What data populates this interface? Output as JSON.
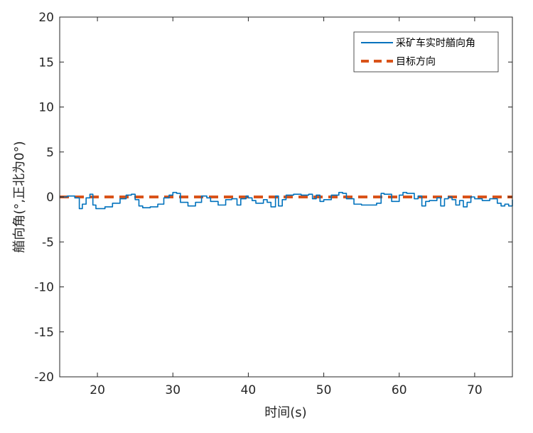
{
  "chart_data": {
    "type": "line",
    "title": "",
    "xlabel": "时间(s)",
    "ylabel": "艏向角(°,正北为0°)",
    "xlim": [
      15,
      75
    ],
    "ylim": [
      -20,
      20
    ],
    "xticks": [
      20,
      30,
      40,
      50,
      60,
      70
    ],
    "yticks": [
      -20,
      -15,
      -10,
      -5,
      0,
      5,
      10,
      15,
      20
    ],
    "grid": false,
    "legend_position": "top-right",
    "colors": {
      "actual": "#0072BD",
      "target": "#D95319",
      "axis": "#262626"
    },
    "series": [
      {
        "name": "采矿车实时艏向角",
        "style": "solid",
        "x": [
          15,
          16,
          17,
          17.6,
          18,
          18.5,
          19,
          19.4,
          19.8,
          20.3,
          21,
          22,
          23,
          23.8,
          24.5,
          25,
          25.5,
          26,
          27,
          28,
          28.8,
          29.5,
          30,
          30.5,
          31,
          32,
          33,
          33.8,
          34.5,
          35,
          36,
          37,
          37.8,
          38.5,
          39,
          39.7,
          40,
          40.5,
          41,
          42,
          42.5,
          43,
          43.6,
          44,
          44.5,
          45,
          46,
          47,
          48,
          48.5,
          49,
          49.5,
          50,
          51,
          52,
          52.5,
          53,
          54,
          55,
          56,
          57,
          57.6,
          58,
          59,
          60,
          60.5,
          61,
          62,
          62.5,
          63,
          63.5,
          64,
          65,
          65.5,
          66,
          66.5,
          67,
          67.5,
          68,
          68.5,
          69,
          69.5,
          70,
          71,
          72,
          73,
          73.5,
          74,
          74.5,
          75
        ],
        "y": [
          0,
          0.1,
          -0.1,
          -1.3,
          -0.8,
          -0.1,
          0.3,
          -0.9,
          -1.3,
          -1.3,
          -1.1,
          -0.7,
          -0.2,
          0.2,
          0.3,
          -0.3,
          -1.0,
          -1.2,
          -1.1,
          -0.8,
          -0.1,
          0.2,
          0.5,
          0.4,
          -0.6,
          -1.0,
          -0.6,
          0.1,
          -0.1,
          -0.5,
          -0.9,
          -0.3,
          -0.2,
          -0.9,
          -0.2,
          0.1,
          -0.1,
          -0.4,
          -0.7,
          -0.3,
          -0.6,
          -1.1,
          0.1,
          -1.0,
          -0.3,
          0.2,
          0.3,
          0.2,
          0.3,
          -0.2,
          0.2,
          -0.5,
          -0.3,
          0.2,
          0.5,
          0.4,
          -0.2,
          -0.8,
          -0.9,
          -0.9,
          -0.7,
          0.4,
          0.3,
          -0.5,
          0.2,
          0.5,
          0.4,
          -0.2,
          0.1,
          -1.0,
          -0.5,
          -0.4,
          -0.1,
          -1.0,
          -0.2,
          0.0,
          -0.3,
          -0.9,
          -0.4,
          -1.1,
          -0.6,
          0.0,
          -0.2,
          -0.4,
          -0.2,
          -0.7,
          -1.0,
          -0.8,
          -1.0,
          -0.3
        ]
      },
      {
        "name": "目标方向",
        "style": "dashed",
        "x": [
          15,
          75
        ],
        "y": [
          0,
          0
        ]
      }
    ]
  }
}
